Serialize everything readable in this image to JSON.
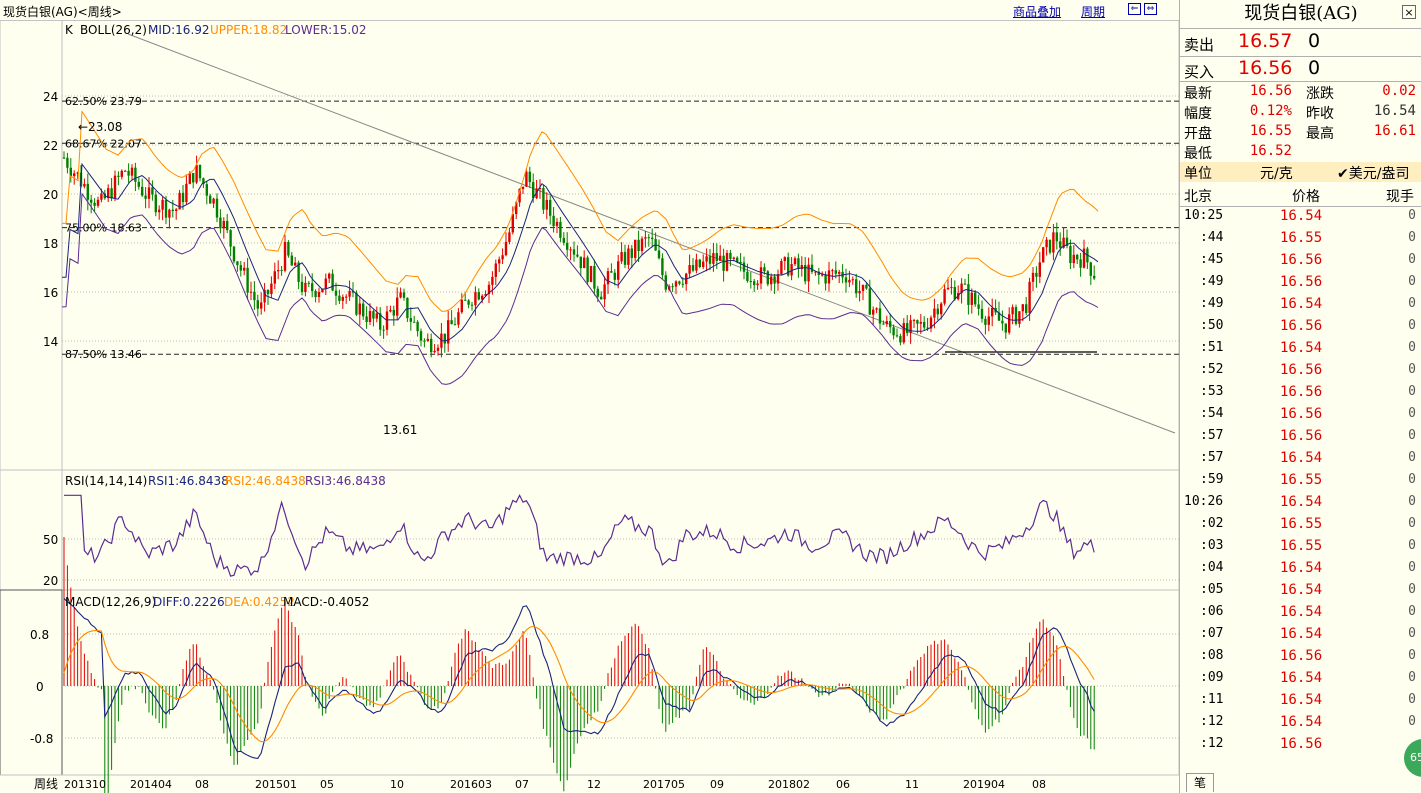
{
  "window": {
    "title": "现货白银(AG)<周线>",
    "overlay_btn": "商品叠加",
    "period_btn": "周期",
    "close": "×"
  },
  "colors": {
    "up": "#e00000",
    "down": "#008000",
    "mid": "#1a237e",
    "upper": "#ff8c00",
    "lower": "#5b2c91",
    "bg": "#fffff0"
  },
  "main": {
    "legend_k": "K",
    "boll_label": "BOLL(26,2)",
    "mid": "MID:16.92",
    "upper": "UPPER:18.82",
    "lower": "LOWER:15.02",
    "y_ticks": [
      "24",
      "22",
      "20",
      "18",
      "16",
      "14"
    ],
    "fib": [
      {
        "label": "62.50%  23.79",
        "value": 23.79
      },
      {
        "label": "68.67%  22.07",
        "value": 22.07
      },
      {
        "label": "75.00%  18.63",
        "value": 18.63
      },
      {
        "label": "87.50%  13.46",
        "value": 13.46
      }
    ],
    "high_mark": "23.08",
    "low_mark": "13.61"
  },
  "rsi": {
    "label": "RSI(14,14,14)",
    "rsi1": "RSI1:46.8438",
    "rsi2": "RSI2:46.8438",
    "rsi3": "RSI3:46.8438",
    "y_ticks": [
      "50",
      "20"
    ]
  },
  "macd": {
    "label": "MACD(12,26,9)",
    "diff": "DIFF:0.2226",
    "dea": "DEA:0.4252",
    "macd": "MACD:-0.4052",
    "y_ticks": [
      "0.8",
      "0",
      "-0.8"
    ]
  },
  "x_axis": {
    "unit": "周线",
    "labels": [
      "201310",
      "201404",
      "08",
      "201501",
      "05",
      "10",
      "201603",
      "07",
      "12",
      "201705",
      "09",
      "201802",
      "06",
      "11",
      "201904",
      "08"
    ]
  },
  "chart_data": {
    "type": "candlestick",
    "frequency": "weekly",
    "x_range": [
      "201310",
      "201908"
    ],
    "ylim_main": [
      13,
      25.5
    ],
    "ylim_rsi": [
      10,
      90
    ],
    "ylim_macd": [
      -1.2,
      1.2
    ],
    "last_close": 16.56
  },
  "quote": {
    "title": "现货白银(AG)",
    "sell_label": "卖出",
    "sell_price": "16.57",
    "sell_vol": "0",
    "buy_label": "买入",
    "buy_price": "16.56",
    "buy_vol": "0",
    "stats": [
      {
        "k1": "最新",
        "v1": "16.56",
        "k2": "涨跌",
        "v2": "0.02"
      },
      {
        "k1": "幅度",
        "v1": "0.12%",
        "k2": "昨收",
        "v2": "16.54"
      },
      {
        "k1": "开盘",
        "v1": "16.55",
        "k2": "最高",
        "v2": "16.61"
      },
      {
        "k1": "最低",
        "v1": "16.52",
        "k2": "",
        "v2": ""
      }
    ],
    "unit_label": "单位",
    "unit_value": "元/克",
    "unit_alt": "美元/盎司",
    "ticks_header": {
      "time": "北京",
      "price": "价格",
      "vol": "现手"
    },
    "ticks": [
      {
        "time": "10:25",
        "price": "16.54",
        "vol": "0"
      },
      {
        "time": ":44",
        "price": "16.55",
        "vol": "0"
      },
      {
        "time": ":45",
        "price": "16.56",
        "vol": "0"
      },
      {
        "time": ":49",
        "price": "16.56",
        "vol": "0"
      },
      {
        "time": ":49",
        "price": "16.54",
        "vol": "0"
      },
      {
        "time": ":50",
        "price": "16.56",
        "vol": "0"
      },
      {
        "time": ":51",
        "price": "16.54",
        "vol": "0"
      },
      {
        "time": ":52",
        "price": "16.56",
        "vol": "0"
      },
      {
        "time": ":53",
        "price": "16.56",
        "vol": "0"
      },
      {
        "time": ":54",
        "price": "16.56",
        "vol": "0"
      },
      {
        "time": ":57",
        "price": "16.56",
        "vol": "0"
      },
      {
        "time": ":57",
        "price": "16.54",
        "vol": "0"
      },
      {
        "time": ":59",
        "price": "16.55",
        "vol": "0"
      },
      {
        "time": "10:26",
        "price": "16.54",
        "vol": "0"
      },
      {
        "time": ":02",
        "price": "16.55",
        "vol": "0"
      },
      {
        "time": ":03",
        "price": "16.55",
        "vol": "0"
      },
      {
        "time": ":04",
        "price": "16.54",
        "vol": "0"
      },
      {
        "time": ":05",
        "price": "16.54",
        "vol": "0"
      },
      {
        "time": ":06",
        "price": "16.54",
        "vol": "0"
      },
      {
        "time": ":07",
        "price": "16.54",
        "vol": "0"
      },
      {
        "time": ":08",
        "price": "16.56",
        "vol": "0"
      },
      {
        "time": ":09",
        "price": "16.54",
        "vol": "0"
      },
      {
        "time": ":11",
        "price": "16.54",
        "vol": "0"
      },
      {
        "time": ":12",
        "price": "16.54",
        "vol": "0"
      },
      {
        "time": ":12",
        "price": "16.56",
        "vol": ""
      }
    ],
    "tab": "笔",
    "badge": "65"
  }
}
